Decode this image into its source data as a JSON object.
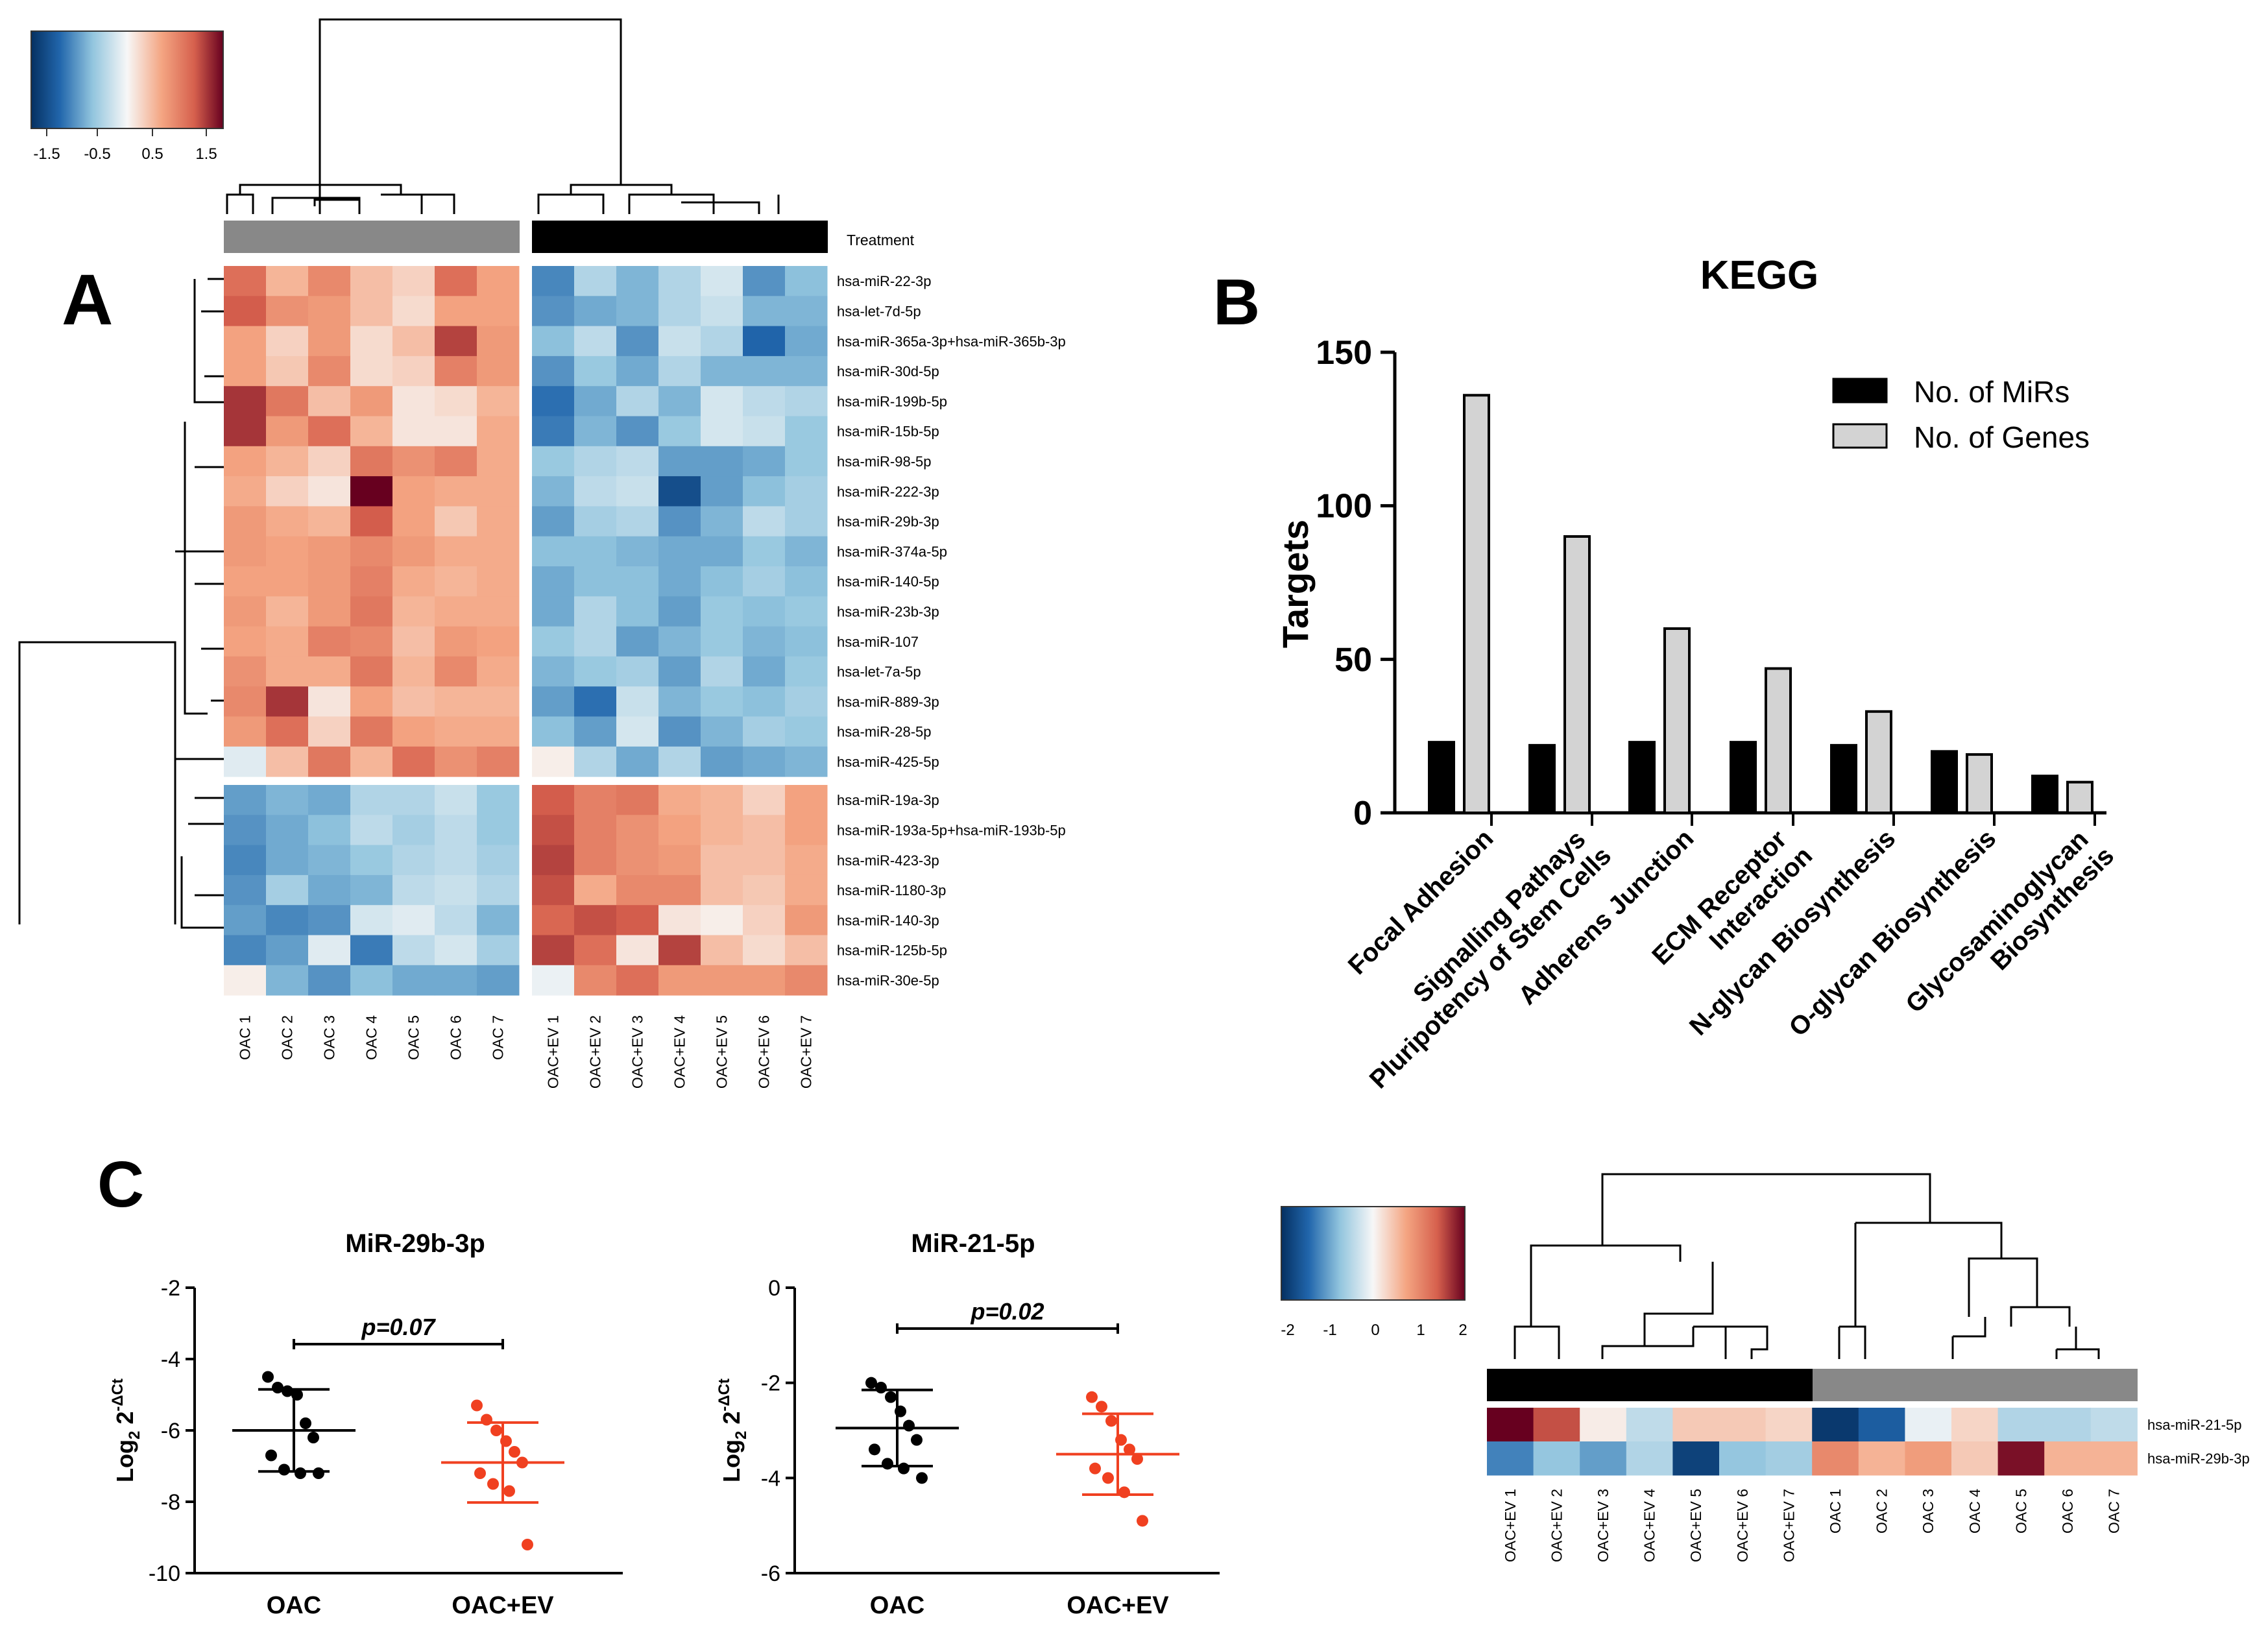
{
  "panels": {
    "a": "A",
    "b": "B",
    "c": "C"
  },
  "heatmap_a": {
    "colorbar_ticks": [
      "-1.5",
      "-0.5",
      "0.5",
      "1.5"
    ],
    "treatment_label": "Treatment",
    "top_group_colors": [
      "#888888",
      "#000000"
    ],
    "rows": [
      "hsa-miR-22-3p",
      "hsa-let-7d-5p",
      "hsa-miR-365a-3p+hsa-miR-365b-3p",
      "hsa-miR-30d-5p",
      "hsa-miR-199b-5p",
      "hsa-miR-15b-5p",
      "hsa-miR-98-5p",
      "hsa-miR-222-3p",
      "hsa-miR-29b-3p",
      "hsa-miR-374a-5p",
      "hsa-miR-140-5p",
      "hsa-miR-23b-3p",
      "hsa-miR-107",
      "hsa-let-7a-5p",
      "hsa-miR-889-3p",
      "hsa-miR-28-5p",
      "hsa-miR-425-5p",
      "hsa-miR-19a-3p",
      "hsa-miR-193a-5p+hsa-miR-193b-5p",
      "hsa-miR-423-3p",
      "hsa-miR-1180-3p",
      "hsa-miR-140-3p",
      "hsa-miR-125b-5p",
      "hsa-miR-30e-5p"
    ],
    "columns": [
      "OAC 1",
      "OAC 2",
      "OAC 3",
      "OAC 4",
      "OAC 5",
      "OAC 6",
      "OAC 7",
      "OAC+EV 1",
      "OAC+EV 2",
      "OAC+EV 3",
      "OAC+EV 4",
      "OAC+EV 5",
      "OAC+EV 6",
      "OAC+EV 7"
    ],
    "values": [
      [
        1.5,
        0.7,
        1.2,
        0.6,
        0.4,
        1.5,
        0.9,
        -1.4,
        -0.6,
        -1.0,
        -0.6,
        -0.3,
        -1.3,
        -0.9
      ],
      [
        1.7,
        1.1,
        1.0,
        0.6,
        0.3,
        0.9,
        0.9,
        -1.3,
        -1.1,
        -1.0,
        -0.6,
        -0.4,
        -1.0,
        -1.0
      ],
      [
        0.9,
        0.4,
        1.0,
        0.3,
        0.6,
        1.9,
        1.0,
        -0.9,
        -0.5,
        -1.3,
        -0.4,
        -0.6,
        -1.7,
        -1.1
      ],
      [
        0.9,
        0.5,
        1.2,
        0.3,
        0.4,
        1.3,
        1.0,
        -1.3,
        -0.8,
        -1.1,
        -0.6,
        -1.0,
        -1.0,
        -1.0
      ],
      [
        2.0,
        1.4,
        0.6,
        1.0,
        0.2,
        0.3,
        0.7,
        -1.6,
        -1.1,
        -0.6,
        -1.0,
        -0.3,
        -0.5,
        -0.6
      ],
      [
        2.0,
        1.0,
        1.5,
        0.7,
        0.2,
        0.2,
        0.8,
        -1.5,
        -1.0,
        -1.3,
        -0.8,
        -0.3,
        -0.4,
        -0.8
      ],
      [
        0.9,
        0.7,
        0.4,
        1.4,
        1.1,
        1.3,
        0.8,
        -0.8,
        -0.6,
        -0.5,
        -1.2,
        -1.2,
        -1.1,
        -0.8
      ],
      [
        0.8,
        0.4,
        0.2,
        2.4,
        0.9,
        0.8,
        0.8,
        -1.0,
        -0.5,
        -0.4,
        -2.0,
        -1.2,
        -0.9,
        -0.7
      ],
      [
        1.0,
        0.8,
        0.7,
        1.7,
        0.9,
        0.5,
        0.8,
        -1.2,
        -0.7,
        -0.6,
        -1.3,
        -1.0,
        -0.5,
        -0.7
      ],
      [
        1.0,
        0.9,
        1.0,
        1.2,
        1.0,
        0.8,
        0.8,
        -0.9,
        -0.9,
        -1.0,
        -1.1,
        -1.1,
        -0.8,
        -1.0
      ],
      [
        0.9,
        0.9,
        1.0,
        1.3,
        0.8,
        0.7,
        0.8,
        -1.1,
        -0.9,
        -0.9,
        -1.1,
        -0.9,
        -0.7,
        -0.9
      ],
      [
        1.0,
        0.7,
        1.0,
        1.4,
        0.7,
        0.8,
        0.8,
        -1.1,
        -0.6,
        -0.9,
        -1.2,
        -0.8,
        -0.9,
        -0.8
      ],
      [
        0.9,
        0.8,
        1.3,
        1.2,
        0.6,
        1.0,
        0.9,
        -0.8,
        -0.6,
        -1.2,
        -1.0,
        -0.8,
        -1.0,
        -0.9
      ],
      [
        1.1,
        0.8,
        0.8,
        1.4,
        0.7,
        1.2,
        0.8,
        -1.0,
        -0.8,
        -0.7,
        -1.2,
        -0.6,
        -1.1,
        -0.8
      ],
      [
        1.2,
        2.0,
        0.2,
        0.9,
        0.6,
        0.7,
        0.7,
        -1.2,
        -1.6,
        -0.4,
        -1.0,
        -0.8,
        -0.9,
        -0.7
      ],
      [
        1.0,
        1.5,
        0.4,
        1.4,
        0.9,
        0.8,
        0.8,
        -0.9,
        -1.2,
        -0.3,
        -1.3,
        -1.0,
        -0.7,
        -0.8
      ],
      [
        -0.2,
        0.6,
        1.4,
        0.7,
        1.5,
        1.1,
        1.3,
        0.1,
        -0.6,
        -1.1,
        -0.6,
        -1.2,
        -1.1,
        -1.0
      ],
      [
        -1.2,
        -1.0,
        -1.1,
        -0.6,
        -0.6,
        -0.4,
        -0.8,
        1.7,
        1.3,
        1.4,
        0.8,
        0.7,
        0.4,
        0.9
      ],
      [
        -1.3,
        -1.1,
        -0.9,
        -0.5,
        -0.7,
        -0.5,
        -0.8,
        1.8,
        1.3,
        1.1,
        0.9,
        0.7,
        0.6,
        0.9
      ],
      [
        -1.4,
        -1.1,
        -1.0,
        -0.8,
        -0.6,
        -0.5,
        -0.7,
        1.9,
        1.3,
        1.1,
        1.0,
        0.6,
        0.6,
        0.8
      ],
      [
        -1.3,
        -0.7,
        -1.1,
        -1.0,
        -0.5,
        -0.4,
        -0.6,
        1.8,
        0.8,
        1.2,
        1.2,
        0.6,
        0.5,
        0.8
      ],
      [
        -1.2,
        -1.4,
        -1.3,
        -0.3,
        -0.2,
        -0.5,
        -1.0,
        1.6,
        1.8,
        1.7,
        0.2,
        0.1,
        0.4,
        1.0
      ],
      [
        -1.4,
        -1.2,
        -0.2,
        -1.5,
        -0.5,
        -0.3,
        -0.7,
        1.9,
        1.5,
        0.2,
        1.9,
        0.6,
        0.3,
        0.6
      ],
      [
        0.1,
        -1.0,
        -1.3,
        -0.9,
        -1.1,
        -1.1,
        -1.2,
        -0.1,
        1.2,
        1.5,
        1.0,
        1.0,
        1.0,
        1.2
      ]
    ]
  },
  "kegg": {
    "title": "KEGG",
    "ylabel": "Targets",
    "yticks": [
      "0",
      "50",
      "100",
      "150"
    ],
    "legend": [
      "No. of MiRs",
      "No. of Genes"
    ],
    "categories": [
      [
        "Focal Adhesion"
      ],
      [
        "Signalling Pathays",
        "Pluripotency of Stem Cells"
      ],
      [
        "Adherens Junction"
      ],
      [
        "ECM Receptor",
        "Interaction"
      ],
      [
        "N-glycan Biosynthesis"
      ],
      [
        "O-glycan Biosynthesis"
      ],
      [
        "Glycosaminoglycan",
        "Biosynthesis"
      ]
    ]
  },
  "scatter_c1": {
    "title": "MiR-29b-3p",
    "pvalue": "p=0.07",
    "yticks": [
      "-10",
      "-8",
      "-6",
      "-4",
      "-2"
    ],
    "groups": [
      "OAC",
      "OAC+EV"
    ]
  },
  "scatter_c2": {
    "title": "MiR-21-5p",
    "pvalue": "p=0.02",
    "yticks": [
      "-6",
      "-4",
      "-2",
      "0"
    ],
    "groups": [
      "OAC",
      "OAC+EV"
    ]
  },
  "ylabel_c": {
    "base": "Log",
    "sub": "2",
    "sup": "-ΔCt",
    "num": "2"
  },
  "heatmap_c": {
    "colorbar_ticks": [
      "-2",
      "-1",
      "0",
      "1",
      "2"
    ],
    "top_group_colors": [
      "#000000",
      "#888888"
    ],
    "rows": [
      "hsa-miR-21-5p",
      "hsa-miR-29b-3p"
    ],
    "columns": [
      "OAC+EV 1",
      "OAC+EV 2",
      "OAC+EV 3",
      "OAC+EV 4",
      "OAC+EV 5",
      "OAC+EV 6",
      "OAC+EV 7",
      "OAC 1",
      "OAC 2",
      "OAC 3",
      "OAC 4",
      "OAC 5",
      "OAC 6",
      "OAC 7"
    ],
    "values": [
      [
        2.0,
        1.5,
        0.1,
        -0.4,
        0.4,
        0.4,
        0.3,
        -1.9,
        -1.5,
        -0.1,
        0.3,
        -0.5,
        -0.5,
        -0.4
      ],
      [
        -1.2,
        -0.7,
        -1.0,
        -0.5,
        -1.8,
        -0.7,
        -0.6,
        1.0,
        0.6,
        0.8,
        0.4,
        1.9,
        0.6,
        0.6
      ]
    ]
  },
  "chart_data": [
    {
      "type": "heatmap",
      "title": "",
      "colorbar_range": [
        -1.5,
        1.5
      ],
      "row_source": "heatmap_a.rows",
      "column_source": "heatmap_a.columns",
      "value_source": "heatmap_a.values"
    },
    {
      "type": "bar",
      "title": "KEGG",
      "xlabel": "",
      "ylabel": "Targets",
      "ylim": [
        0,
        150
      ],
      "categories": [
        "Focal Adhesion",
        "Signalling Pathays Pluripotency of Stem Cells",
        "Adherens Junction",
        "ECM Receptor Interaction",
        "N-glycan Biosynthesis",
        "O-glycan Biosynthesis",
        "Glycosaminoglycan Biosynthesis"
      ],
      "series": [
        {
          "name": "No. of MiRs",
          "color": "#000000",
          "values": [
            23,
            22,
            23,
            23,
            22,
            20,
            12
          ]
        },
        {
          "name": "No. of Genes",
          "color": "#d3d3d3",
          "values": [
            136,
            90,
            60,
            47,
            33,
            19,
            10
          ]
        }
      ]
    },
    {
      "type": "scatter",
      "title": "MiR-29b-3p",
      "ylabel": "Log2 2^-ΔCt",
      "ylim": [
        -10,
        -2
      ],
      "categories": [
        "OAC",
        "OAC+EV"
      ],
      "series": [
        {
          "name": "OAC",
          "color": "#000000",
          "values": [
            -4.5,
            -4.8,
            -4.9,
            -5.0,
            -5.8,
            -6.2,
            -6.7,
            -7.1,
            -7.2,
            -7.2
          ],
          "mean": -6.0,
          "sd": 1.15
        },
        {
          "name": "OAC+EV",
          "color": "#f04020",
          "values": [
            -5.3,
            -5.7,
            -6.0,
            -6.3,
            -6.6,
            -6.9,
            -7.2,
            -7.5,
            -7.7,
            -9.2
          ],
          "mean": -6.9,
          "sd": 1.12
        }
      ],
      "annotation": "p=0.07"
    },
    {
      "type": "scatter",
      "title": "MiR-21-5p",
      "ylabel": "Log2 2^-ΔCt",
      "ylim": [
        -6,
        0
      ],
      "categories": [
        "OAC",
        "OAC+EV"
      ],
      "series": [
        {
          "name": "OAC",
          "color": "#000000",
          "values": [
            -2.0,
            -2.1,
            -2.3,
            -2.6,
            -2.9,
            -3.2,
            -3.4,
            -3.7,
            -3.8,
            -4.0
          ],
          "mean": -2.95,
          "sd": 0.8
        },
        {
          "name": "OAC+EV",
          "color": "#f04020",
          "values": [
            -2.3,
            -2.5,
            -2.8,
            -3.2,
            -3.4,
            -3.6,
            -3.8,
            -4.0,
            -4.3,
            -4.9
          ],
          "mean": -3.5,
          "sd": 0.85
        }
      ],
      "annotation": "p=0.02"
    },
    {
      "type": "heatmap",
      "title": "",
      "colorbar_range": [
        -2,
        2
      ],
      "row_source": "heatmap_c.rows",
      "column_source": "heatmap_c.columns",
      "value_source": "heatmap_c.values"
    }
  ]
}
